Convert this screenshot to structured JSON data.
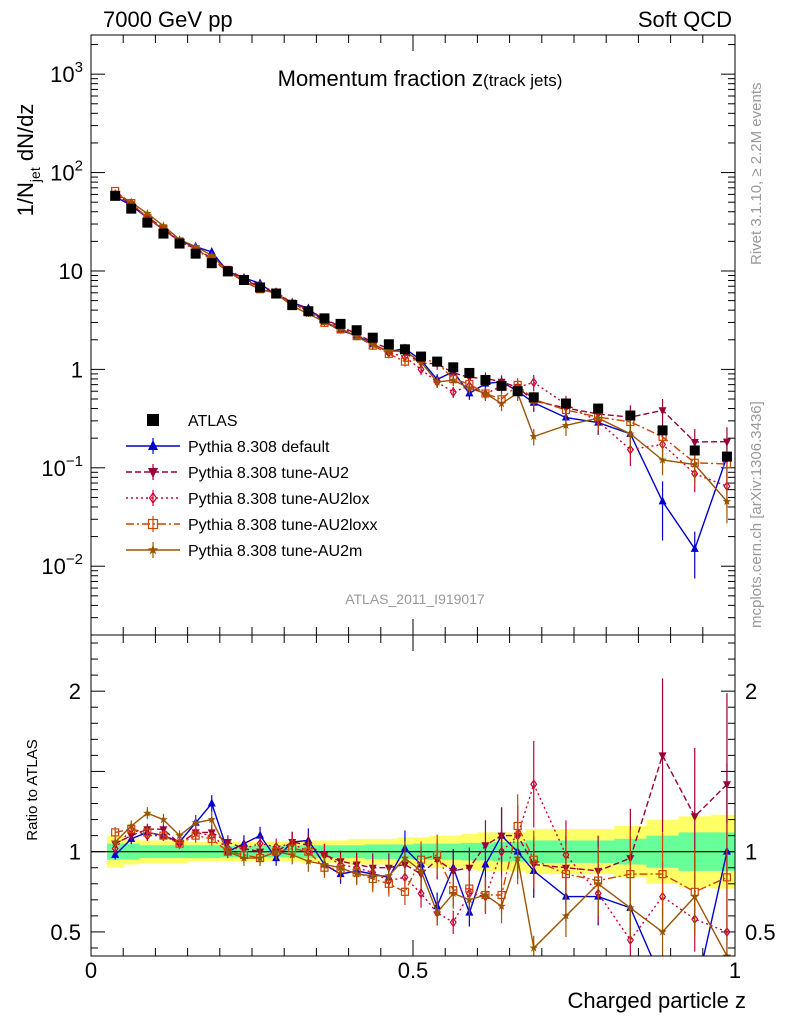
{
  "header": {
    "left": "7000 GeV pp",
    "right": "Soft QCD"
  },
  "side_labels": {
    "rivet": "Rivet 3.1.10, ≥ 2.2M events",
    "mcplots": "mcplots.cern.ch [arXiv:1306.3436]"
  },
  "main_title": {
    "text": "Momentum fraction z",
    "sub": "(track jets)"
  },
  "ylabel_main": {
    "base": "1/N",
    "sub": "jet",
    "tail": " dN/dz"
  },
  "ylabel_ratio": "Ratio to ATLAS",
  "xlabel": "Charged particle z",
  "analysis_id": "ATLAS_2011_I919017",
  "main_ticks": [
    {
      "value": 1000,
      "base": "10",
      "exp": "3"
    },
    {
      "value": 100,
      "base": "10",
      "exp": "2"
    },
    {
      "value": 10,
      "base": "10",
      "exp": ""
    },
    {
      "value": 1,
      "base": "1",
      "exp": ""
    },
    {
      "value": 0.1,
      "base": "10",
      "exp": "−1"
    },
    {
      "value": 0.01,
      "base": "10",
      "exp": "−2"
    }
  ],
  "ratio_ticks": [
    {
      "value": 2,
      "label": "2"
    },
    {
      "value": 1,
      "label": "1"
    },
    {
      "value": 0.5,
      "label": "0.5"
    }
  ],
  "x_ticks": [
    {
      "value": 0,
      "label": "0"
    },
    {
      "value": 0.5,
      "label": "0.5"
    },
    {
      "value": 1,
      "label": "1"
    }
  ],
  "legend": [
    {
      "label": "ATLAS",
      "color": "#000000",
      "marker": "square",
      "dash": ""
    },
    {
      "label": "Pythia 8.308 default",
      "color": "#0000cc",
      "marker": "triangle-up",
      "dash": ""
    },
    {
      "label": "Pythia 8.308 tune-AU2",
      "color": "#990033",
      "marker": "triangle-down",
      "dash": "6,3"
    },
    {
      "label": "Pythia 8.308 tune-AU2lox",
      "color": "#cc0033",
      "marker": "diamond-open",
      "dash": "2,3"
    },
    {
      "label": "Pythia 8.308 tune-AU2loxx",
      "color": "#cc4400",
      "marker": "square-open",
      "dash": "8,3,2,3"
    },
    {
      "label": "Pythia 8.308 tune-AU2m",
      "color": "#995500",
      "marker": "star",
      "dash": ""
    }
  ],
  "chart_data": {
    "type": "scatter",
    "xlim": [
      0,
      1
    ],
    "ylim_main": [
      0.002,
      2500
    ],
    "ylim_ratio": [
      0.35,
      2.35
    ],
    "log_y_main": true,
    "x": [
      0.0375,
      0.0625,
      0.0875,
      0.1125,
      0.1375,
      0.1625,
      0.1875,
      0.2125,
      0.2375,
      0.2625,
      0.2875,
      0.3125,
      0.3375,
      0.3625,
      0.3875,
      0.4125,
      0.4375,
      0.4625,
      0.4875,
      0.5125,
      0.5375,
      0.5625,
      0.5875,
      0.6125,
      0.6375,
      0.6625,
      0.6875,
      0.7375,
      0.7875,
      0.8375,
      0.8875,
      0.9375,
      0.9875
    ],
    "atlas": [
      58,
      43,
      31,
      24,
      19,
      15,
      12,
      9.9,
      8.1,
      6.8,
      5.9,
      4.5,
      3.9,
      3.3,
      2.9,
      2.5,
      2.1,
      1.8,
      1.6,
      1.35,
      1.2,
      1.05,
      0.92,
      0.78,
      0.68,
      0.6,
      0.52,
      0.45,
      0.4,
      0.34,
      0.24,
      0.15,
      0.13
    ],
    "atlas_err": [
      0.04,
      0.04,
      0.04,
      0.04,
      0.04,
      0.04,
      0.04,
      0.04,
      0.04,
      0.04,
      0.04,
      0.04,
      0.04,
      0.04,
      0.04,
      0.04,
      0.05,
      0.05,
      0.05,
      0.05,
      0.05,
      0.05,
      0.06,
      0.06,
      0.06,
      0.07,
      0.07,
      0.07,
      0.08,
      0.09,
      0.1,
      0.1,
      0.12
    ],
    "band_inner": [
      [
        0.95,
        1.05
      ],
      [
        0.95,
        1.05
      ],
      [
        0.96,
        1.04
      ],
      [
        0.96,
        1.04
      ],
      [
        0.96,
        1.04
      ],
      [
        0.96,
        1.04
      ],
      [
        0.96,
        1.04
      ],
      [
        0.965,
        1.035
      ],
      [
        0.965,
        1.035
      ],
      [
        0.965,
        1.035
      ],
      [
        0.965,
        1.035
      ],
      [
        0.965,
        1.035
      ],
      [
        0.96,
        1.04
      ],
      [
        0.96,
        1.04
      ],
      [
        0.96,
        1.04
      ],
      [
        0.96,
        1.04
      ],
      [
        0.955,
        1.045
      ],
      [
        0.955,
        1.045
      ],
      [
        0.955,
        1.045
      ],
      [
        0.95,
        1.05
      ],
      [
        0.95,
        1.05
      ],
      [
        0.95,
        1.05
      ],
      [
        0.945,
        1.055
      ],
      [
        0.945,
        1.055
      ],
      [
        0.94,
        1.06
      ],
      [
        0.94,
        1.06
      ],
      [
        0.93,
        1.07
      ],
      [
        0.93,
        1.07
      ],
      [
        0.93,
        1.07
      ],
      [
        0.92,
        1.08
      ],
      [
        0.9,
        1.1
      ],
      [
        0.88,
        1.12
      ],
      [
        0.88,
        1.12
      ]
    ],
    "band_outer": [
      [
        0.9,
        1.1
      ],
      [
        0.92,
        1.08
      ],
      [
        0.93,
        1.07
      ],
      [
        0.93,
        1.07
      ],
      [
        0.93,
        1.07
      ],
      [
        0.94,
        1.06
      ],
      [
        0.94,
        1.06
      ],
      [
        0.94,
        1.06
      ],
      [
        0.94,
        1.06
      ],
      [
        0.94,
        1.06
      ],
      [
        0.94,
        1.06
      ],
      [
        0.94,
        1.06
      ],
      [
        0.93,
        1.07
      ],
      [
        0.93,
        1.07
      ],
      [
        0.93,
        1.07
      ],
      [
        0.92,
        1.08
      ],
      [
        0.92,
        1.08
      ],
      [
        0.92,
        1.08
      ],
      [
        0.91,
        1.09
      ],
      [
        0.91,
        1.09
      ],
      [
        0.9,
        1.1
      ],
      [
        0.9,
        1.1
      ],
      [
        0.89,
        1.11
      ],
      [
        0.88,
        1.12
      ],
      [
        0.88,
        1.12
      ],
      [
        0.88,
        1.12
      ],
      [
        0.86,
        1.14
      ],
      [
        0.86,
        1.14
      ],
      [
        0.86,
        1.14
      ],
      [
        0.84,
        1.16
      ],
      [
        0.8,
        1.2
      ],
      [
        0.78,
        1.22
      ],
      [
        0.77,
        1.23
      ]
    ],
    "series": [
      {
        "name": "Pythia 8.308 default",
        "ratio": [
          0.98,
          1.08,
          1.12,
          1.1,
          1.06,
          1.18,
          1.3,
          1.0,
          1.05,
          1.1,
          0.96,
          1.06,
          1.07,
          0.92,
          0.86,
          0.88,
          0.86,
          0.84,
          1.02,
          0.92,
          0.66,
          0.9,
          0.62,
          0.92,
          1.1,
          1.0,
          0.88,
          0.72,
          0.72,
          0.65,
          0.19,
          0.1,
          1.0
        ],
        "err": [
          0.03,
          0.03,
          0.03,
          0.03,
          0.03,
          0.04,
          0.04,
          0.04,
          0.05,
          0.05,
          0.05,
          0.06,
          0.07,
          0.07,
          0.07,
          0.08,
          0.1,
          0.1,
          0.11,
          0.12,
          0.13,
          0.13,
          0.14,
          0.15,
          0.16,
          0.17,
          0.19,
          0.22,
          0.25,
          0.32,
          0.6,
          0.5,
          0.55
        ]
      },
      {
        "name": "Pythia 8.308 tune-AU2",
        "ratio": [
          1.05,
          1.1,
          1.14,
          1.14,
          1.05,
          1.12,
          1.12,
          1.06,
          1.02,
          1.0,
          1.0,
          1.06,
          1.04,
          0.98,
          0.94,
          0.92,
          0.9,
          0.9,
          0.92,
          0.86,
          0.95,
          0.88,
          0.9,
          1.04,
          1.1,
          1.1,
          0.92,
          0.9,
          0.88,
          0.96,
          1.6,
          1.22,
          1.42
        ],
        "err": [
          0.03,
          0.03,
          0.03,
          0.03,
          0.03,
          0.04,
          0.04,
          0.04,
          0.05,
          0.05,
          0.05,
          0.06,
          0.07,
          0.07,
          0.07,
          0.08,
          0.1,
          0.1,
          0.11,
          0.12,
          0.13,
          0.13,
          0.14,
          0.15,
          0.16,
          0.17,
          0.19,
          0.22,
          0.25,
          0.32,
          0.3,
          0.35,
          0.4
        ]
      },
      {
        "name": "Pythia 8.308 tune-AU2lox",
        "ratio": [
          1.02,
          1.14,
          1.1,
          1.1,
          1.05,
          1.12,
          1.1,
          1.02,
          1.02,
          1.05,
          1.03,
          1.05,
          1.0,
          0.98,
          0.92,
          0.9,
          0.87,
          0.82,
          0.84,
          0.74,
          0.62,
          0.56,
          0.74,
          0.72,
          1.0,
          1.1,
          1.42,
          0.98,
          0.74,
          0.45,
          0.72,
          0.58,
          0.5
        ],
        "err": [
          0.03,
          0.03,
          0.03,
          0.03,
          0.03,
          0.04,
          0.04,
          0.04,
          0.05,
          0.05,
          0.05,
          0.06,
          0.07,
          0.07,
          0.07,
          0.08,
          0.1,
          0.1,
          0.11,
          0.12,
          0.13,
          0.13,
          0.14,
          0.15,
          0.16,
          0.17,
          0.19,
          0.22,
          0.25,
          0.32,
          0.3,
          0.35,
          0.4
        ]
      },
      {
        "name": "Pythia 8.308 tune-AU2loxx",
        "ratio": [
          1.12,
          1.14,
          1.12,
          1.1,
          1.05,
          1.1,
          1.08,
          1.0,
          0.98,
          0.96,
          1.0,
          1.02,
          1.0,
          0.9,
          0.89,
          0.87,
          0.83,
          0.8,
          0.75,
          0.95,
          0.98,
          0.76,
          0.77,
          0.73,
          0.73,
          1.16,
          0.95,
          0.86,
          0.82,
          0.86,
          0.86,
          0.75,
          0.84
        ],
        "err": [
          0.03,
          0.03,
          0.03,
          0.03,
          0.03,
          0.04,
          0.04,
          0.04,
          0.05,
          0.05,
          0.05,
          0.06,
          0.07,
          0.07,
          0.07,
          0.08,
          0.1,
          0.1,
          0.11,
          0.12,
          0.13,
          0.13,
          0.14,
          0.15,
          0.16,
          0.17,
          0.19,
          0.22,
          0.25,
          0.32,
          0.3,
          0.35,
          0.4
        ]
      },
      {
        "name": "Pythia 8.308 tune-AU2m",
        "ratio": [
          1.06,
          1.16,
          1.24,
          1.2,
          1.1,
          1.18,
          1.2,
          1.0,
          0.96,
          0.96,
          1.0,
          0.98,
          0.94,
          0.92,
          0.9,
          0.86,
          0.85,
          0.85,
          0.96,
          0.88,
          0.62,
          0.74,
          0.7,
          0.73,
          0.66,
          0.96,
          0.4,
          0.6,
          0.8,
          0.65,
          0.5,
          0.72,
          0.35
        ],
        "err": [
          0.03,
          0.03,
          0.03,
          0.03,
          0.03,
          0.04,
          0.04,
          0.04,
          0.05,
          0.05,
          0.05,
          0.06,
          0.07,
          0.07,
          0.07,
          0.08,
          0.1,
          0.1,
          0.11,
          0.12,
          0.13,
          0.13,
          0.14,
          0.15,
          0.16,
          0.17,
          0.19,
          0.22,
          0.25,
          0.32,
          0.3,
          0.35,
          0.4
        ]
      }
    ]
  }
}
